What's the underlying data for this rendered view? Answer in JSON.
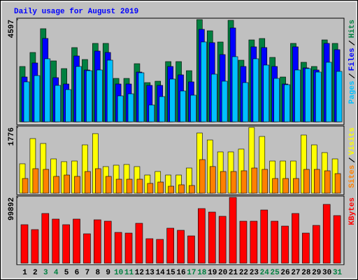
{
  "title": "Daily usage for August 2019",
  "chart_data": [
    {
      "type": "bar",
      "ylim": [
        0,
        4597
      ],
      "yticks": [
        4597
      ],
      "series": [
        {
          "name": "Hits",
          "color": "#008040",
          "values": [
            2488,
            3118,
            4188,
            2740,
            2393,
            3338,
            2802,
            3527,
            3527,
            1952,
            1952,
            2614,
            1763,
            1826,
            2708,
            2708,
            2299,
            4597,
            4094,
            3590,
            4566,
            2771,
            3684,
            3747,
            2897,
            2015,
            3527,
            2677,
            2488,
            3684,
            3527
          ]
        },
        {
          "name": "Files",
          "color": "#0000ff",
          "values": [
            2016,
            2646,
            3749,
            1985,
            1701,
            2961,
            2331,
            3182,
            3119,
            1701,
            1701,
            2237,
            1638,
            1638,
            2489,
            2111,
            1796,
            4158,
            3560,
            3024,
            4221,
            2489,
            3371,
            3339,
            2489,
            1701,
            3371,
            2426,
            2331,
            3528,
            3245
          ]
        },
        {
          "name": "Pages",
          "color": "#00c0ff",
          "values": [
            1796,
            2079,
            2835,
            1638,
            1449,
            2489,
            2300,
            2331,
            2772,
            1166,
            1260,
            2205,
            756,
            1134,
            1922,
            1386,
            1197,
            3591,
            2142,
            1827,
            2930,
            1764,
            2835,
            2552,
            1953,
            1670,
            2331,
            2394,
            2237,
            2678,
            2268
          ]
        }
      ]
    },
    {
      "type": "bar",
      "ylim": [
        0,
        1776
      ],
      "yticks": [
        1776
      ],
      "series": [
        {
          "name": "Visits",
          "color": "#ffff00",
          "values": [
            794,
            1474,
            1342,
            926,
            851,
            869,
            1304,
            1607,
            718,
            756,
            775,
            718,
            491,
            586,
            491,
            491,
            680,
            1625,
            1436,
            1115,
            1115,
            1191,
            1776,
            1531,
            869,
            869,
            869,
            1569,
            1304,
            1096,
            926
          ]
        },
        {
          "name": "Sites",
          "color": "#ff8000",
          "values": [
            397,
            662,
            643,
            454,
            491,
            454,
            586,
            662,
            454,
            378,
            378,
            378,
            265,
            302,
            189,
            227,
            208,
            907,
            720,
            586,
            586,
            605,
            680,
            643,
            397,
            397,
            397,
            643,
            643,
            605,
            529
          ]
        }
      ]
    },
    {
      "type": "bar",
      "ylim": [
        0,
        99892
      ],
      "yticks": [
        99892
      ],
      "categories": [
        "1",
        "2",
        "3",
        "4",
        "5",
        "6",
        "7",
        "8",
        "9",
        "10",
        "11",
        "12",
        "13",
        "14",
        "15",
        "16",
        "17",
        "18",
        "19",
        "20",
        "21",
        "22",
        "23",
        "24",
        "25",
        "26",
        "27",
        "28",
        "29",
        "30",
        "31"
      ],
      "category_colors": [
        "#000000",
        "#000000",
        "#008040",
        "#008040",
        "#000000",
        "#000000",
        "#000000",
        "#000000",
        "#000000",
        "#008040",
        "#008040",
        "#000000",
        "#000000",
        "#000000",
        "#000000",
        "#000000",
        "#008040",
        "#008040",
        "#000000",
        "#000000",
        "#000000",
        "#000000",
        "#000000",
        "#008040",
        "#008040",
        "#000000",
        "#000000",
        "#000000",
        "#000000",
        "#000000",
        "#008040"
      ],
      "series": [
        {
          "name": "KBytes",
          "color": "#ff0000",
          "values": [
            58465,
            51024,
            75473,
            66969,
            58465,
            66969,
            44646,
            65906,
            63780,
            46772,
            45709,
            60591,
            37205,
            36142,
            53150,
            49961,
            41457,
            82914,
            77599,
            71221,
            99892,
            63780,
            63780,
            80788,
            63780,
            56339,
            75473,
            45709,
            57402,
            89292,
            72284
          ]
        }
      ]
    }
  ]
}
